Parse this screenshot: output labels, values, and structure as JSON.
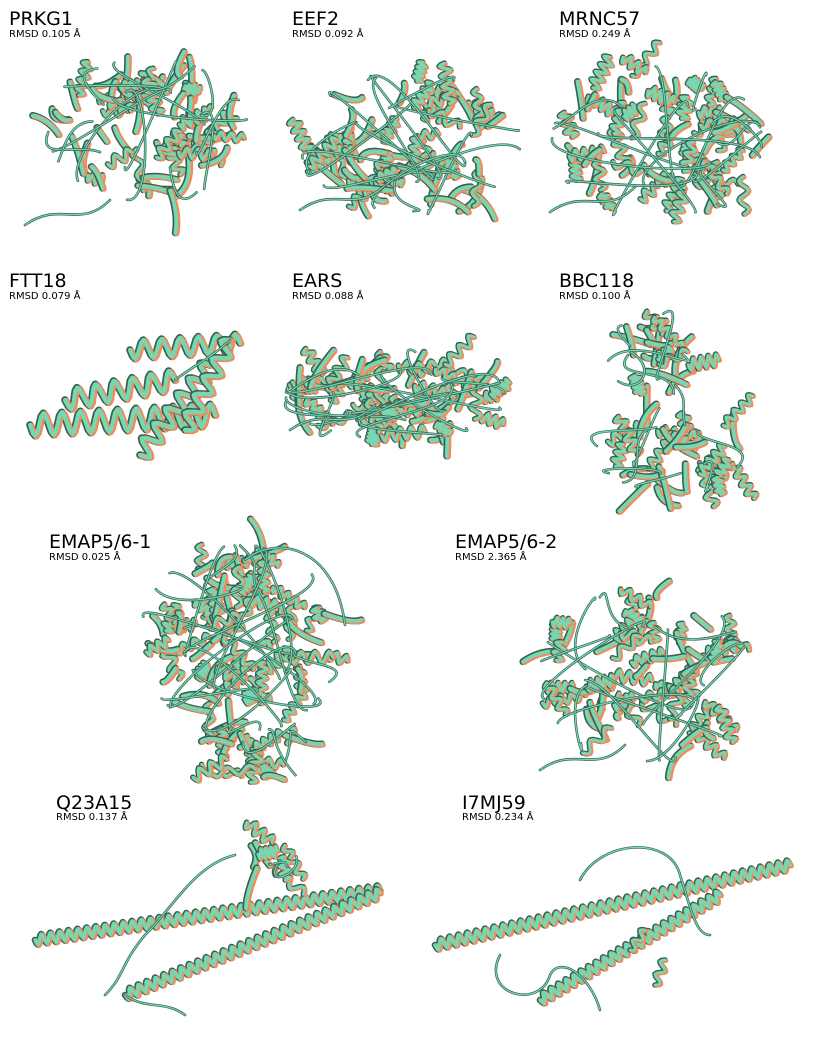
{
  "colors": {
    "model_a": "#f28a5c",
    "model_b": "#6fdcb6",
    "outline": "#3b5e50"
  },
  "panels": [
    {
      "name": "PRKG1",
      "rmsd": "RMSD 0.105 Å"
    },
    {
      "name": "EEF2",
      "rmsd": "RMSD 0.092 Å"
    },
    {
      "name": "MRNC57",
      "rmsd": "RMSD 0.249 Å"
    },
    {
      "name": "FTT18",
      "rmsd": "RMSD 0.079 Å"
    },
    {
      "name": "EARS",
      "rmsd": "RMSD 0.088 Å"
    },
    {
      "name": "BBC118",
      "rmsd": "RMSD 0.100 Å"
    },
    {
      "name": "EMAP5/6-1",
      "rmsd": "RMSD 0.025 Å"
    },
    {
      "name": "EMAP5/6-2",
      "rmsd": "RMSD 2.365 Å"
    },
    {
      "name": "Q23A15",
      "rmsd": "RMSD 0.137 Å"
    },
    {
      "name": "I7MJ59",
      "rmsd": "RMSD 0.234 Å"
    }
  ]
}
